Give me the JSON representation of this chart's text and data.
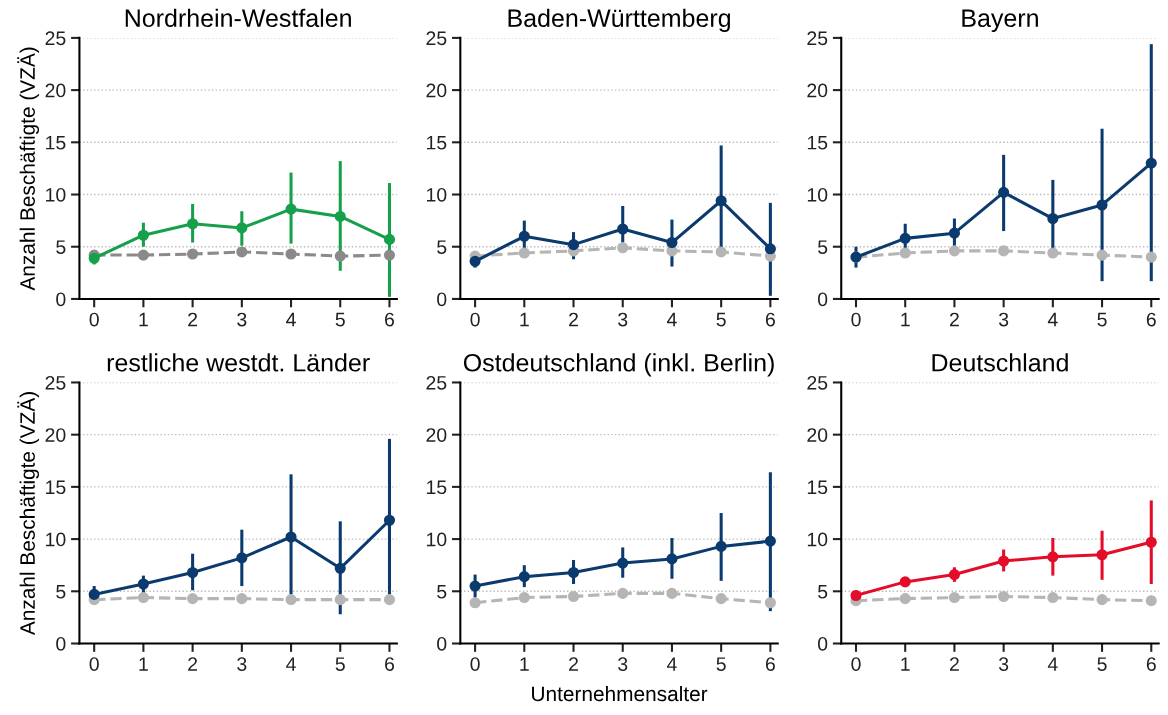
{
  "chart_data": [
    {
      "type": "line",
      "title": "Nordrhein-Westfalen",
      "ylabel": "Anzahl Beschäftigte (VZÄ)",
      "x": [
        0,
        1,
        2,
        3,
        4,
        5,
        6
      ],
      "xlim": [
        -0.3,
        6.15
      ],
      "xticks": [
        0,
        1,
        2,
        3,
        4,
        5,
        6
      ],
      "ylim": [
        0,
        25
      ],
      "yticks": [
        0,
        5,
        10,
        15,
        20,
        25
      ],
      "grid": "y",
      "marker": "circle",
      "series": [
        {
          "color": "#8a8a8a",
          "line_style": "dashed",
          "values": [
            4.2,
            4.2,
            4.3,
            4.5,
            4.3,
            4.1,
            4.2
          ]
        },
        {
          "color": "#17a04b",
          "line_style": "solid",
          "values": [
            3.9,
            6.1,
            7.2,
            6.8,
            8.6,
            7.9,
            5.7
          ],
          "errors": [
            [
              3.3,
              4.5
            ],
            [
              5.0,
              7.3
            ],
            [
              5.4,
              9.1
            ],
            [
              5.1,
              8.4
            ],
            [
              5.3,
              12.1
            ],
            [
              2.7,
              13.2
            ],
            [
              0.2,
              11.1
            ]
          ]
        }
      ]
    },
    {
      "type": "line",
      "title": "Baden-Württemberg",
      "x": [
        0,
        1,
        2,
        3,
        4,
        5,
        6
      ],
      "xlim": [
        -0.3,
        6.15
      ],
      "xticks": [
        0,
        1,
        2,
        3,
        4,
        5,
        6
      ],
      "ylim": [
        0,
        25
      ],
      "yticks": [
        0,
        5,
        10,
        15,
        20,
        25
      ],
      "grid": "y",
      "marker": "circle",
      "series": [
        {
          "color": "#b5b5b5",
          "line_style": "dashed",
          "values": [
            4.1,
            4.4,
            4.6,
            4.9,
            4.6,
            4.5,
            4.1
          ]
        },
        {
          "color": "#0b3a6e",
          "line_style": "solid",
          "values": [
            3.6,
            6.0,
            5.2,
            6.7,
            5.4,
            9.4,
            4.8
          ],
          "errors": [
            [
              3.0,
              4.2
            ],
            [
              4.7,
              7.5
            ],
            [
              3.8,
              6.4
            ],
            [
              5.4,
              8.9
            ],
            [
              3.1,
              7.6
            ],
            [
              4.9,
              14.7
            ],
            [
              0.3,
              9.2
            ]
          ]
        }
      ]
    },
    {
      "type": "line",
      "title": "Bayern",
      "x": [
        0,
        1,
        2,
        3,
        4,
        5,
        6
      ],
      "xlim": [
        -0.3,
        6.15
      ],
      "xticks": [
        0,
        1,
        2,
        3,
        4,
        5,
        6
      ],
      "ylim": [
        0,
        25
      ],
      "yticks": [
        0,
        5,
        10,
        15,
        20,
        25
      ],
      "grid": "y",
      "marker": "circle",
      "series": [
        {
          "color": "#b5b5b5",
          "line_style": "dashed",
          "values": [
            4.0,
            4.4,
            4.6,
            4.6,
            4.4,
            4.2,
            4.0
          ]
        },
        {
          "color": "#0b3a6e",
          "line_style": "solid",
          "values": [
            4.0,
            5.8,
            6.3,
            10.2,
            7.7,
            9.0,
            13.0
          ],
          "errors": [
            [
              3.0,
              5.0
            ],
            [
              4.6,
              7.2
            ],
            [
              5.0,
              7.7
            ],
            [
              6.5,
              13.8
            ],
            [
              4.5,
              11.4
            ],
            [
              1.7,
              16.3
            ],
            [
              1.7,
              24.4
            ]
          ]
        }
      ]
    },
    {
      "type": "line",
      "title": "restliche westdt. Länder",
      "ylabel": "Anzahl Beschäftigte (VZÄ)",
      "x": [
        0,
        1,
        2,
        3,
        4,
        5,
        6
      ],
      "xlim": [
        -0.3,
        6.15
      ],
      "xticks": [
        0,
        1,
        2,
        3,
        4,
        5,
        6
      ],
      "ylim": [
        0,
        25
      ],
      "yticks": [
        0,
        5,
        10,
        15,
        20,
        25
      ],
      "grid": "y",
      "marker": "circle",
      "series": [
        {
          "color": "#b5b5b5",
          "line_style": "dashed",
          "values": [
            4.2,
            4.4,
            4.3,
            4.3,
            4.2,
            4.2,
            4.2
          ]
        },
        {
          "color": "#0b3a6e",
          "line_style": "solid",
          "values": [
            4.7,
            5.7,
            6.8,
            8.2,
            10.2,
            7.2,
            11.8
          ],
          "errors": [
            [
              4.4,
              5.5
            ],
            [
              4.7,
              6.5
            ],
            [
              5.1,
              8.6
            ],
            [
              5.5,
              10.9
            ],
            [
              4.7,
              16.2
            ],
            [
              2.8,
              11.7
            ],
            [
              4.7,
              19.6
            ]
          ]
        }
      ]
    },
    {
      "type": "line",
      "title": "Ostdeutschland (inkl. Berlin)",
      "xlabel": "Unternehmensalter",
      "x": [
        0,
        1,
        2,
        3,
        4,
        5,
        6
      ],
      "xlim": [
        -0.3,
        6.15
      ],
      "xticks": [
        0,
        1,
        2,
        3,
        4,
        5,
        6
      ],
      "ylim": [
        0,
        25
      ],
      "yticks": [
        0,
        5,
        10,
        15,
        20,
        25
      ],
      "grid": "y",
      "marker": "circle",
      "series": [
        {
          "color": "#b5b5b5",
          "line_style": "dashed",
          "values": [
            3.9,
            4.4,
            4.5,
            4.8,
            4.8,
            4.3,
            3.9
          ]
        },
        {
          "color": "#0b3a6e",
          "line_style": "solid",
          "values": [
            5.5,
            6.4,
            6.8,
            7.7,
            8.1,
            9.3,
            9.8
          ],
          "errors": [
            [
              4.4,
              6.6
            ],
            [
              5.4,
              7.5
            ],
            [
              5.7,
              8.0
            ],
            [
              6.3,
              9.2
            ],
            [
              6.2,
              10.1
            ],
            [
              6.0,
              12.5
            ],
            [
              3.1,
              16.4
            ]
          ]
        }
      ]
    },
    {
      "type": "line",
      "title": "Deutschland",
      "x": [
        0,
        1,
        2,
        3,
        4,
        5,
        6
      ],
      "xlim": [
        -0.3,
        6.15
      ],
      "xticks": [
        0,
        1,
        2,
        3,
        4,
        5,
        6
      ],
      "ylim": [
        0,
        25
      ],
      "yticks": [
        0,
        5,
        10,
        15,
        20,
        25
      ],
      "grid": "y",
      "marker": "circle",
      "series": [
        {
          "color": "#b5b5b5",
          "line_style": "dashed",
          "values": [
            4.1,
            4.3,
            4.4,
            4.5,
            4.4,
            4.2,
            4.1
          ]
        },
        {
          "color": "#e30d2a",
          "line_style": "solid",
          "values": [
            4.6,
            5.9,
            6.6,
            7.9,
            8.3,
            8.5,
            9.7
          ],
          "errors": [
            [
              4.3,
              4.9
            ],
            [
              5.5,
              6.3
            ],
            [
              5.9,
              7.3
            ],
            [
              6.9,
              9.0
            ],
            [
              6.5,
              10.1
            ],
            [
              6.1,
              10.8
            ],
            [
              5.7,
              13.7
            ]
          ]
        }
      ]
    }
  ]
}
